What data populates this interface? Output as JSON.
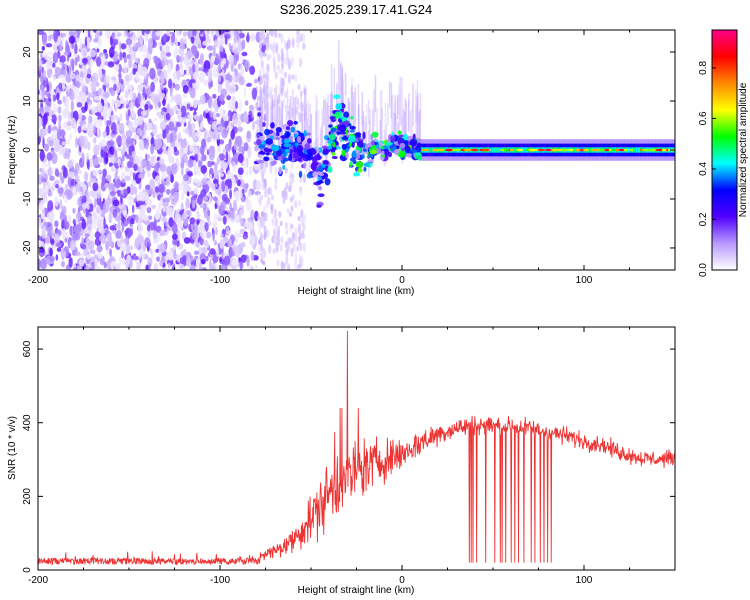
{
  "title": "S236.2025.239.17.41.G24",
  "colors": {
    "snr_line": "#ee3333",
    "axis": "#000000",
    "background": "#ffffff"
  },
  "colorbar": {
    "label": "Normalized spectral amplitude",
    "range": [
      0.0,
      0.95
    ],
    "ticks": [
      "0.0",
      "0.2",
      "0.4",
      "0.6",
      "0.8"
    ],
    "colormap": [
      "#ffffff",
      "#b899ff",
      "#5000ff",
      "#0000ff",
      "#00ffff",
      "#00ff00",
      "#ffff00",
      "#ff8800",
      "#ff0000",
      "#ff0088"
    ]
  },
  "chart_data": [
    {
      "type": "heatmap",
      "name": "spectrogram",
      "title": "S236.2025.239.17.41.G24",
      "xlabel": "Height of straight line (km)",
      "ylabel": "Frequency (Hz)",
      "xlim": [
        -200,
        150
      ],
      "ylim": [
        -24.5,
        24.5
      ],
      "xticks": [
        -200,
        -100,
        0,
        100
      ],
      "xtick_labels": [
        "-200",
        "-100",
        "0",
        "100"
      ],
      "yticks": [
        -20,
        -10,
        0,
        10,
        20
      ],
      "ytick_labels": [
        "-20",
        "-10",
        "0",
        "10",
        "20"
      ],
      "regions": [
        {
          "x": [
            -200,
            -80
          ],
          "description_level": "noise",
          "amplitude_range": [
            0.0,
            0.1
          ]
        },
        {
          "x": [
            -80,
            0
          ],
          "description_level": "scattered",
          "amplitude_range": [
            0.1,
            0.5
          ]
        },
        {
          "x": [
            0,
            150
          ],
          "description_level": "carrier",
          "amplitude_range": [
            0.3,
            0.95
          ]
        }
      ],
      "carrier_track": {
        "x": [
          -78,
          -70,
          -60,
          -50,
          -45,
          -40,
          -35,
          -30,
          -25,
          -20,
          -15,
          -10,
          -5,
          0,
          5,
          10,
          20,
          40,
          60,
          80,
          100,
          120,
          150
        ],
        "y": [
          2,
          0,
          1,
          -2,
          -5,
          0,
          6,
          2,
          0,
          -1,
          1,
          0,
          1,
          1,
          0.5,
          0,
          0,
          0,
          0,
          0,
          0,
          0,
          0
        ]
      }
    },
    {
      "type": "line",
      "name": "snr",
      "xlabel": "Height of straight line (km)",
      "ylabel": "SNR (10 * v/v)",
      "xlim": [
        -200,
        150
      ],
      "ylim": [
        0,
        660
      ],
      "xticks": [
        -200,
        -100,
        0,
        100
      ],
      "xtick_labels": [
        "-200",
        "-100",
        "0",
        "100"
      ],
      "yticks": [
        0,
        200,
        400,
        600
      ],
      "ytick_labels": [
        "0",
        "200",
        "400",
        "600"
      ],
      "envelope": {
        "x": [
          -200,
          -100,
          -80,
          -78,
          -70,
          -60,
          -50,
          -40,
          -30,
          -20,
          -10,
          0,
          10,
          20,
          30,
          40,
          50,
          60,
          70,
          80,
          90,
          100,
          110,
          120,
          130,
          140,
          150
        ],
        "y": [
          20,
          20,
          22,
          40,
          50,
          80,
          140,
          210,
          250,
          280,
          300,
          315,
          345,
          370,
          385,
          395,
          395,
          390,
          385,
          375,
          365,
          350,
          340,
          320,
          305,
          300,
          305
        ]
      },
      "noise_amplitude": {
        "x": [
          -200,
          -80,
          -60,
          -40,
          -20,
          0,
          30,
          150
        ],
        "y": [
          10,
          10,
          40,
          110,
          90,
          50,
          30,
          25
        ]
      },
      "spikes": [
        {
          "x": -37,
          "y": 375
        },
        {
          "x": -34,
          "y": 440
        },
        {
          "x": -33,
          "y": 440
        },
        {
          "x": -30,
          "y": 650
        },
        {
          "x": -24,
          "y": 440
        }
      ],
      "dropouts": [
        37,
        38,
        39,
        41,
        46,
        51,
        54,
        55,
        57,
        60,
        62,
        64,
        67,
        71,
        73,
        76,
        78,
        80,
        82
      ]
    }
  ]
}
